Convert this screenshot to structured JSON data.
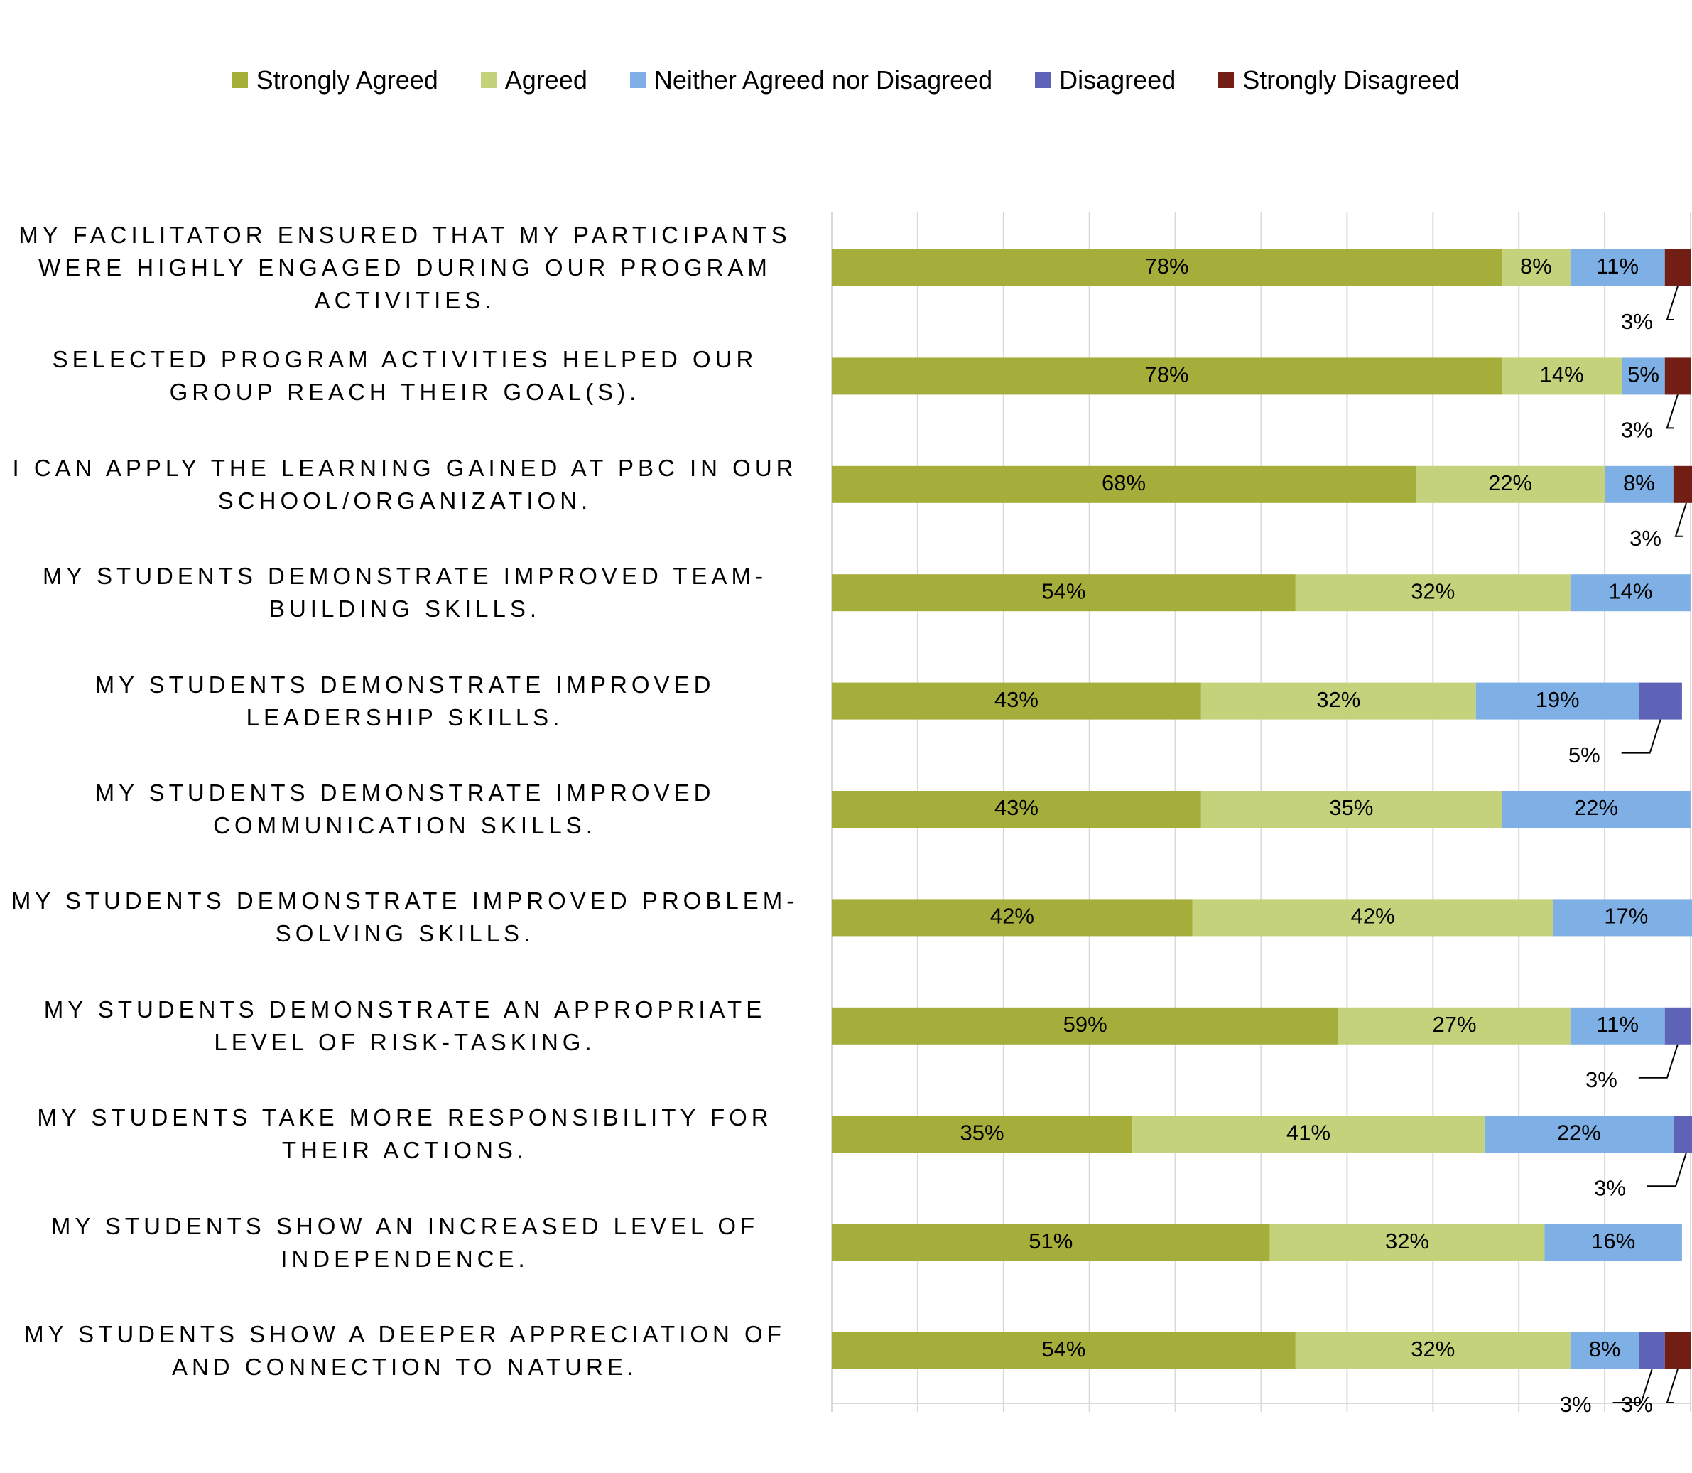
{
  "chart_data": {
    "type": "stacked-bar-horizontal",
    "categories": [
      "MY FACILITATOR ENSURED THAT MY PARTICIPANTS WERE HIGHLY ENGAGED DURING OUR PROGRAM ACTIVITIES.",
      "SELECTED PROGRAM ACTIVITIES HELPED OUR GROUP REACH THEIR GOAL(S).",
      "I CAN APPLY THE LEARNING GAINED AT PBC IN OUR SCHOOL/ORGANIZATION.",
      "MY STUDENTS DEMONSTRATE IMPROVED TEAM-BUILDING SKILLS.",
      "MY STUDENTS DEMONSTRATE IMPROVED LEADERSHIP SKILLS.",
      "MY STUDENTS DEMONSTRATE IMPROVED COMMUNICATION SKILLS.",
      "MY STUDENTS DEMONSTRATE IMPROVED PROBLEM-SOLVING SKILLS.",
      "MY STUDENTS DEMONSTRATE AN APPROPRIATE LEVEL OF RISK-TASKING.",
      "MY STUDENTS TAKE MORE RESPONSIBILITY FOR THEIR ACTIONS.",
      "MY STUDENTS SHOW AN INCREASED LEVEL OF INDEPENDENCE.",
      "MY STUDENTS SHOW A DEEPER APPRECIATION OF AND CONNECTION TO NATURE."
    ],
    "series": [
      {
        "name": "Strongly Agreed",
        "color": "#a5ae3a",
        "values": [
          78,
          78,
          68,
          54,
          43,
          43,
          42,
          59,
          35,
          51,
          54
        ],
        "value_labels": [
          "78%",
          "78%",
          "68%",
          "54%",
          "43%",
          "43%",
          "42%",
          "59%",
          "35%",
          "51%",
          "54%"
        ]
      },
      {
        "name": "Agreed",
        "color": "#c4d37b",
        "values": [
          8,
          14,
          22,
          32,
          32,
          35,
          42,
          27,
          41,
          32,
          32
        ],
        "value_labels": [
          "8%",
          "14%",
          "22%",
          "32%",
          "32%",
          "35%",
          "42%",
          "27%",
          "41%",
          "32%",
          "32%"
        ]
      },
      {
        "name": "Neither Agreed nor Disagreed",
        "color": "#7fb0e5",
        "values": [
          11,
          5,
          8,
          14,
          19,
          22,
          17,
          11,
          22,
          16,
          8
        ],
        "value_labels": [
          "11%",
          "5%",
          "8%",
          "14%",
          "19%",
          "22%",
          "17%",
          "11%",
          "22%",
          "16%",
          "8%"
        ]
      },
      {
        "name": "Disagreed",
        "color": "#5e63b8",
        "values": [
          0,
          0,
          0,
          0,
          5,
          0,
          0,
          3,
          3,
          0,
          3
        ],
        "value_labels": [
          null,
          null,
          null,
          null,
          "5%",
          null,
          null,
          "3%",
          "3%",
          null,
          "3%"
        ]
      },
      {
        "name": "Strongly Disagreed",
        "color": "#731e14",
        "values": [
          3,
          3,
          3,
          0,
          0,
          0,
          0,
          0,
          0,
          0,
          3
        ],
        "value_labels": [
          "3%",
          "3%",
          "3%",
          null,
          null,
          null,
          null,
          null,
          null,
          null,
          "3%"
        ]
      }
    ],
    "xlim": [
      0,
      100
    ],
    "xticks": [
      0,
      10,
      20,
      30,
      40,
      50,
      60,
      70,
      80,
      90,
      100
    ],
    "grid": true,
    "legend": "top"
  }
}
